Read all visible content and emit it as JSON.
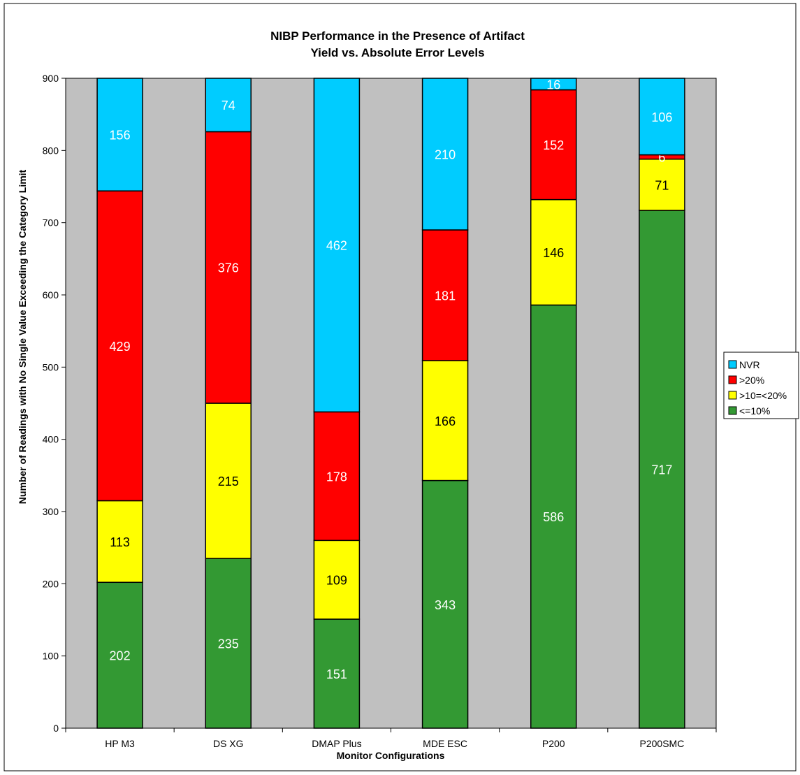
{
  "chart_data": {
    "type": "bar",
    "stacked": true,
    "title": "NIBP Performance in the Presence of Artifact",
    "subtitle": "Yield vs. Absolute Error Levels",
    "xlabel": "Monitor Configurations",
    "ylabel": "Number of Readings with No Single Value Exceeding the Category Limit",
    "ylim": [
      0,
      900
    ],
    "yticks": [
      0,
      100,
      200,
      300,
      400,
      500,
      600,
      700,
      800,
      900
    ],
    "grid": false,
    "legend_position": "right",
    "categories": [
      "HP M3",
      "DS XG",
      "DMAP Plus",
      "MDE ESC",
      "P200",
      "P200SMC"
    ],
    "series": [
      {
        "name": "<=10%",
        "color": "#339933",
        "label_color": "#ffffff",
        "values": [
          202,
          235,
          151,
          343,
          586,
          717
        ]
      },
      {
        "name": ">10=<20%",
        "color": "#ffff00",
        "label_color": "#000000",
        "values": [
          113,
          215,
          109,
          166,
          146,
          71
        ]
      },
      {
        "name": ">20%",
        "color": "#ff0000",
        "label_color": "#ffffff",
        "values": [
          429,
          376,
          178,
          181,
          152,
          6
        ]
      },
      {
        "name": "NVR",
        "color": "#00ccff",
        "label_color": "#ffffff",
        "values": [
          156,
          74,
          462,
          210,
          16,
          106
        ]
      }
    ],
    "legend_order": [
      "NVR",
      ">20%",
      ">10=<20%",
      "<=10%"
    ],
    "plot_background": "#c0c0c0"
  }
}
